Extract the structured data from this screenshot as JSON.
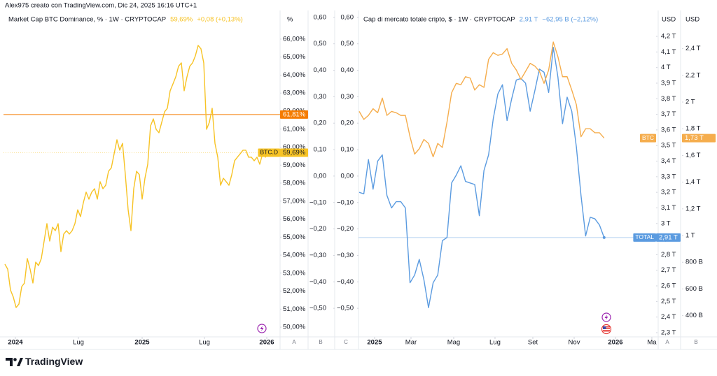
{
  "header": "Alex975 creato con TradingView.com, Dic 24, 2025 16:16 UTC+1",
  "brand": "TradingView",
  "chart_data": [
    {
      "type": "line",
      "title": "Market Cap BTC Dominance, % · 1W · CRYPTOCAP",
      "header_values": [
        "59,69%",
        "+0,08 (+0,13%)"
      ],
      "axis_units": [
        "%"
      ],
      "axis_letters": [
        "A",
        "B",
        "C"
      ],
      "xlim": [
        -0.5,
        98.25
      ],
      "xticks": [
        {
          "value": 3.75,
          "label": "2024"
        },
        {
          "value": 26.25,
          "label": "Lug"
        },
        {
          "value": 49,
          "label": "2025"
        },
        {
          "value": 71.25,
          "label": "Lug"
        },
        {
          "value": 93.5,
          "label": "2026"
        }
      ],
      "ylim": [
        49.46,
        67.59
      ],
      "yticks": [
        {
          "value": 66,
          "label": "66,00%"
        },
        {
          "value": 65,
          "label": "65,00%"
        },
        {
          "value": 64,
          "label": "64,00%"
        },
        {
          "value": 63,
          "label": "63,00%"
        },
        {
          "value": 62,
          "label": "62,00%"
        },
        {
          "value": 61,
          "label": "61,00%"
        },
        {
          "value": 60,
          "label": "60,00%"
        },
        {
          "value": 59,
          "label": "59,00%"
        },
        {
          "value": 58,
          "label": "58,00%"
        },
        {
          "value": 57,
          "label": "57,00%"
        },
        {
          "value": 56,
          "label": "56,00%"
        },
        {
          "value": 55,
          "label": "55,00%"
        },
        {
          "value": 54,
          "label": "54,00%"
        },
        {
          "value": 53,
          "label": "53,00%"
        },
        {
          "value": 52,
          "label": "52,00%"
        },
        {
          "value": 51,
          "label": "51,00%"
        },
        {
          "value": 50,
          "label": "50,00%"
        }
      ],
      "y2lim": [
        -0.608,
        0.626
      ],
      "y2ticks": [
        {
          "value": 0.6,
          "label": "0,60"
        },
        {
          "value": 0.5,
          "label": "0,50"
        },
        {
          "value": 0.4,
          "label": "0,40"
        },
        {
          "value": 0.3,
          "label": "0,30"
        },
        {
          "value": 0.2,
          "label": "0,20"
        },
        {
          "value": 0.1,
          "label": "0,10"
        },
        {
          "value": 0,
          "label": "0,00"
        },
        {
          "value": -0.1,
          "label": "−0,10"
        },
        {
          "value": -0.2,
          "label": "−0,20"
        },
        {
          "value": -0.3,
          "label": "−0,30"
        },
        {
          "value": -0.4,
          "label": "−0,40"
        },
        {
          "value": -0.5,
          "label": "−0,50"
        }
      ],
      "hlines": [
        {
          "value": 61.81,
          "label": "61,81%",
          "color": "#f57c00"
        }
      ],
      "series": [
        {
          "name": "BTC.D",
          "color": "#f7c325",
          "last_label": "59,69%",
          "values": [
            53.5,
            53.22,
            52.06,
            51.67,
            51.09,
            51.28,
            52.25,
            52.45,
            53.81,
            53.22,
            52.45,
            53.61,
            53.42,
            53.81,
            54.78,
            55.75,
            54.78,
            55.55,
            55.36,
            55.75,
            54.19,
            55.17,
            55.36,
            55.17,
            55.36,
            55.75,
            56.52,
            56.14,
            56.91,
            57.5,
            57.11,
            57.5,
            57.69,
            57.11,
            58.08,
            57.69,
            57.88,
            58.66,
            58.85,
            59.63,
            60.41,
            59.83,
            60.21,
            58.47,
            56.52,
            55.36,
            57.69,
            58.66,
            58.47,
            57.11,
            58.27,
            59.05,
            61.18,
            61.57,
            60.99,
            60.8,
            61.38,
            61.96,
            62.16,
            63.13,
            63.51,
            63.9,
            64.49,
            64.68,
            63.13,
            63.9,
            64.49,
            64.68,
            65.07,
            65.65,
            65.46,
            64.68,
            60.99,
            61.38,
            62.16,
            60.21,
            59.44,
            57.88,
            58.27,
            58.08,
            57.88,
            58.47,
            59.24,
            59.44,
            59.63,
            59.83,
            59.83,
            59.44,
            59.44,
            59.24,
            59.44,
            59.05,
            59.63,
            59.44,
            59.63,
            59.69
          ]
        }
      ]
    },
    {
      "type": "line",
      "title": "Cap di mercato totale cripto, $ · 1W · CRYPTOCAP",
      "header_values": [
        "2,91 T",
        "−62,95 B (−2,12%)"
      ],
      "axis_units": [
        "USD",
        "USD"
      ],
      "axis_letters": [
        "A",
        "B"
      ],
      "xlim": [
        -0.15,
        64.7
      ],
      "xticks": [
        {
          "value": 3.33,
          "label": "2025"
        },
        {
          "value": 11.21,
          "label": "Mar"
        },
        {
          "value": 20.45,
          "label": "Mag"
        },
        {
          "value": 29.39,
          "label": "Lug"
        },
        {
          "value": 37.58,
          "label": "Set"
        },
        {
          "value": 46.52,
          "label": "Nov"
        },
        {
          "value": 55.45,
          "label": "2026"
        },
        {
          "value": 63.33,
          "label": "Ma"
        }
      ],
      "ylim": [
        2.273,
        4.366
      ],
      "yticks": [
        {
          "value": 4.2,
          "label": "4,2 T"
        },
        {
          "value": 4.1,
          "label": "4,1 T"
        },
        {
          "value": 4,
          "label": "4 T"
        },
        {
          "value": 3.9,
          "label": "3,9 T"
        },
        {
          "value": 3.8,
          "label": "3,8 T"
        },
        {
          "value": 3.7,
          "label": "3,7 T"
        },
        {
          "value": 3.6,
          "label": "3,6 T"
        },
        {
          "value": 3.5,
          "label": "3,5 T"
        },
        {
          "value": 3.4,
          "label": "3,4 T"
        },
        {
          "value": 3.3,
          "label": "3,3 T"
        },
        {
          "value": 3.2,
          "label": "3,2 T"
        },
        {
          "value": 3.1,
          "label": "3,1 T"
        },
        {
          "value": 3,
          "label": "3 T"
        },
        {
          "value": 2.9,
          "label": "2,9 T"
        },
        {
          "value": 2.8,
          "label": "2,8 T"
        },
        {
          "value": 2.7,
          "label": "2,7 T"
        },
        {
          "value": 2.6,
          "label": "2,6 T"
        },
        {
          "value": 2.5,
          "label": "2,5 T"
        },
        {
          "value": 2.4,
          "label": "2,4 T"
        },
        {
          "value": 2.3,
          "label": "2,3 T"
        }
      ],
      "y2lim": [
        0.241,
        2.686
      ],
      "y2ticks": [
        {
          "value": 2.4,
          "label": "2,4 T"
        },
        {
          "value": 2.2,
          "label": "2,2 T"
        },
        {
          "value": 2,
          "label": "2 T"
        },
        {
          "value": 1.8,
          "label": "1,8 T"
        },
        {
          "value": 1.6,
          "label": "1,6 T"
        },
        {
          "value": 1.4,
          "label": "1,4 T"
        },
        {
          "value": 1.2,
          "label": "1,2 T"
        },
        {
          "value": 1,
          "label": "1 T"
        },
        {
          "value": 0.8,
          "label": "800 B"
        },
        {
          "value": 0.6,
          "label": "600 B"
        },
        {
          "value": 0.4,
          "label": "400 B"
        }
      ],
      "y3lim": [
        -0.608,
        0.626
      ],
      "y3ticks": [
        {
          "value": 0.6,
          "label": "0,60"
        },
        {
          "value": 0.5,
          "label": "0,50"
        },
        {
          "value": 0.4,
          "label": "0,40"
        },
        {
          "value": 0.3,
          "label": "0,30"
        },
        {
          "value": 0.2,
          "label": "0,20"
        },
        {
          "value": 0.1,
          "label": "0,10"
        },
        {
          "value": 0,
          "label": "0,00"
        },
        {
          "value": -0.1,
          "label": "−0,10"
        },
        {
          "value": -0.2,
          "label": "−0,20"
        },
        {
          "value": -0.3,
          "label": "−0,30"
        },
        {
          "value": -0.4,
          "label": "−0,40"
        },
        {
          "value": -0.5,
          "label": "−0,50"
        }
      ],
      "series": [
        {
          "name": "TOTAL",
          "color": "#5b9be0",
          "axis": "y",
          "last_label": "2,91 T",
          "values": [
            3.2,
            3.19,
            3.41,
            3.22,
            3.4,
            3.44,
            3.18,
            3.1,
            3.14,
            3.14,
            3.1,
            2.62,
            2.67,
            2.77,
            2.64,
            2.46,
            2.62,
            2.67,
            2.89,
            2.91,
            3.26,
            3.31,
            3.37,
            3.27,
            3.26,
            3.25,
            3.05,
            3.34,
            3.44,
            3.67,
            3.83,
            3.89,
            3.66,
            3.8,
            3.92,
            3.93,
            3.9,
            3.72,
            3.85,
            3.99,
            3.97,
            3.84,
            4.13,
            3.94,
            3.64,
            3.81,
            3.72,
            3.49,
            3.18,
            2.92,
            3.04,
            3.03,
            2.99,
            2.91
          ]
        },
        {
          "name": "BTC",
          "color": "#f5ad4d",
          "axis": "y2",
          "last_label": "1,73 T",
          "values": [
            1.93,
            1.87,
            1.9,
            1.95,
            1.92,
            2.03,
            1.9,
            1.93,
            1.92,
            1.9,
            1.9,
            1.74,
            1.61,
            1.65,
            1.72,
            1.69,
            1.59,
            1.69,
            1.66,
            1.85,
            2.07,
            2.14,
            2.13,
            2.19,
            2.18,
            2.09,
            2.13,
            2.11,
            2.32,
            2.37,
            2.35,
            2.36,
            2.4,
            2.29,
            2.24,
            2.17,
            2.23,
            2.29,
            2.27,
            2.23,
            2.14,
            2.24,
            2.45,
            2.34,
            2.19,
            2.19,
            2.09,
            1.98,
            1.74,
            1.8,
            1.8,
            1.77,
            1.77,
            1.73
          ]
        }
      ]
    }
  ]
}
